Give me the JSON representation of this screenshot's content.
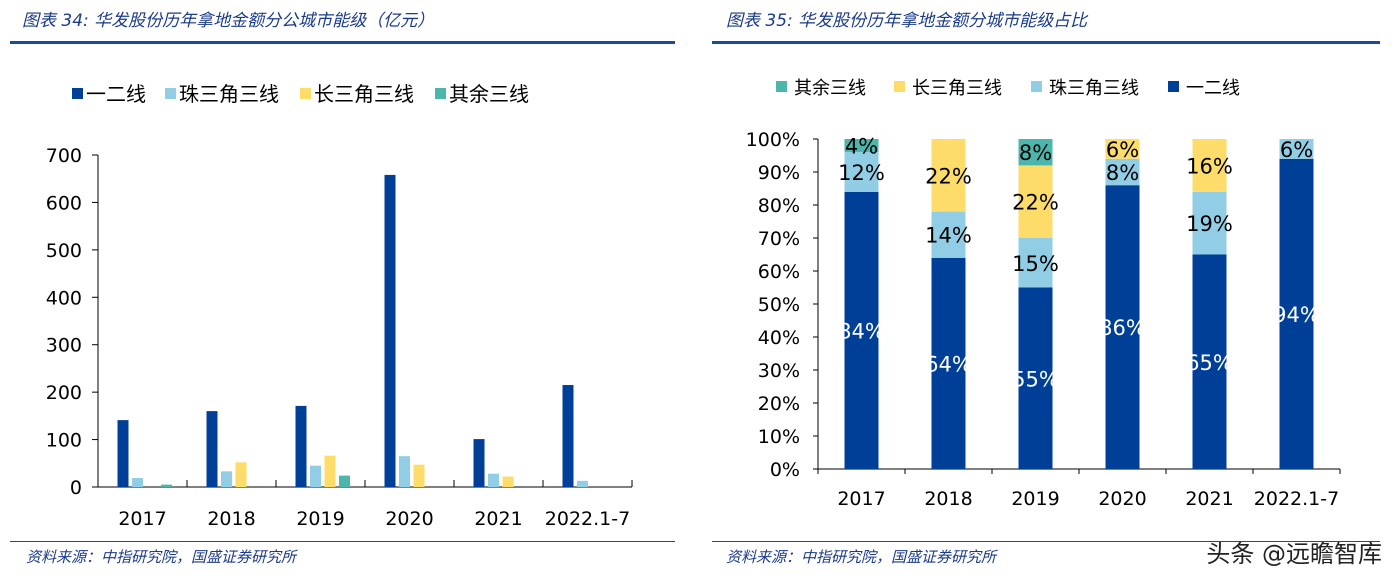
{
  "colors": {
    "一二线": "#003f98",
    "珠三角三线": "#92cde6",
    "长三角三线": "#fddc6a",
    "其余三线": "#4db6ac"
  },
  "chart_data": [
    {
      "type": "bar",
      "title": "图表 34:  华发股份历年拿地金额分公城市能级（亿元）",
      "categories": [
        "2017",
        "2018",
        "2019",
        "2020",
        "2021",
        "2022.1-7"
      ],
      "ylim": [
        0,
        700
      ],
      "yticks": [
        0,
        100,
        200,
        300,
        400,
        500,
        600,
        700
      ],
      "legend": "top",
      "series": [
        {
          "name": "一二线",
          "values": [
            141,
            160,
            171,
            658,
            101,
            215
          ]
        },
        {
          "name": "珠三角三线",
          "values": [
            19,
            33,
            45,
            65,
            28,
            13
          ]
        },
        {
          "name": "长三角三线",
          "values": [
            0,
            52,
            66,
            47,
            22,
            0
          ]
        },
        {
          "name": "其余三线",
          "values": [
            5,
            0,
            24,
            0,
            0,
            0
          ]
        }
      ]
    },
    {
      "type": "bar",
      "stacked": true,
      "title": "图表 35:  华发股份历年拿地金额分城市能级占比",
      "categories": [
        "2017",
        "2018",
        "2019",
        "2020",
        "2021",
        "2022.1-7"
      ],
      "ylim": [
        0,
        100
      ],
      "yticks": [
        "0%",
        "10%",
        "20%",
        "30%",
        "40%",
        "50%",
        "60%",
        "70%",
        "80%",
        "90%",
        "100%"
      ],
      "legend": "top",
      "legend_order": [
        "其余三线",
        "长三角三线",
        "珠三角三线",
        "一二线"
      ],
      "series": [
        {
          "name": "一二线",
          "values": [
            84,
            64,
            55,
            86,
            65,
            94
          ]
        },
        {
          "name": "珠三角三线",
          "values": [
            12,
            14,
            15,
            8,
            19,
            6
          ]
        },
        {
          "name": "长三角三线",
          "values": [
            0,
            22,
            22,
            6,
            16,
            0
          ]
        },
        {
          "name": "其余三线",
          "values": [
            4,
            0,
            8,
            0,
            0,
            0
          ]
        }
      ]
    }
  ],
  "source": "资料来源：中指研究院，国盛证券研究所",
  "watermark": "头条 @远瞻智库"
}
